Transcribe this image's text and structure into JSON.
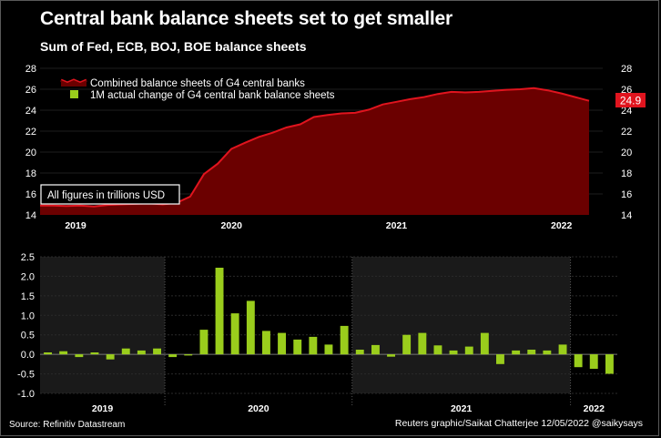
{
  "title": "Central bank balance sheets set to get smaller",
  "subtitle": "Sum of Fed, ECB, BOJ, BOE balance sheets",
  "source": "Source: Refinitiv Datastream",
  "credit": "Reuters graphic/Saikat Chatterjee 12/05/2022 @saikysays",
  "colors": {
    "area_fill": "#6b0000",
    "area_line": "#e0141e",
    "bar": "#9acd1c",
    "last_value_badge": "#e0141e",
    "shade": "#1a1a1a"
  },
  "chart_data": [
    {
      "type": "area",
      "legend": [
        "Combined balance sheets of G4 central banks",
        "1M actual change of G4 central bank balance sheets"
      ],
      "note": "All figures in trillions USD",
      "last_value_label": "24.9",
      "ylim": [
        14,
        28
      ],
      "yticks": [
        14,
        16,
        18,
        20,
        22,
        24,
        26,
        28
      ],
      "xlim": [
        2018.84,
        2022.25
      ],
      "year_labels": [
        {
          "label": "2019",
          "x": 2019.0
        },
        {
          "label": "2020",
          "x": 2020.0
        },
        {
          "label": "2021",
          "x": 2021.0
        },
        {
          "label": "2022",
          "x": 2022.0
        }
      ],
      "x": [
        2018.84,
        2018.917,
        2019.0,
        2019.083,
        2019.167,
        2019.25,
        2019.333,
        2019.417,
        2019.5,
        2019.583,
        2019.667,
        2019.75,
        2019.833,
        2019.917,
        2020.0,
        2020.083,
        2020.167,
        2020.25,
        2020.333,
        2020.417,
        2020.5,
        2020.583,
        2020.667,
        2020.75,
        2020.833,
        2020.917,
        2021.0,
        2021.083,
        2021.167,
        2021.25,
        2021.333,
        2021.417,
        2021.5,
        2021.583,
        2021.667,
        2021.75,
        2021.833,
        2021.917,
        2022.0,
        2022.083,
        2022.167
      ],
      "values": [
        14.9,
        14.9,
        14.85,
        14.9,
        14.8,
        14.95,
        15.0,
        15.05,
        15.1,
        15.0,
        15.15,
        15.75,
        17.9,
        18.9,
        20.3,
        20.9,
        21.45,
        21.85,
        22.35,
        22.65,
        23.35,
        23.55,
        23.7,
        23.75,
        24.05,
        24.55,
        24.8,
        25.05,
        25.25,
        25.55,
        25.75,
        25.7,
        25.75,
        25.85,
        25.95,
        26.0,
        26.1,
        25.9,
        25.6,
        25.25,
        24.9
      ]
    },
    {
      "type": "bar",
      "ylim": [
        -1.0,
        2.5
      ],
      "yticks": [
        "2.5",
        "2.0",
        "1.5",
        "1.0",
        "0.5",
        "0.0",
        "-0.5",
        "-1.0"
      ],
      "year_labels": [
        "2019",
        "2020",
        "2021",
        "2022"
      ],
      "groups": [
        {
          "year": "2019",
          "values": [
            0.05,
            0.08,
            -0.07,
            0.05,
            -0.13,
            0.15,
            0.1,
            0.15
          ]
        },
        {
          "year": "2020",
          "values": [
            -0.07,
            -0.03,
            0.63,
            2.22,
            1.05,
            1.37,
            0.6,
            0.55,
            0.38,
            0.45,
            0.25,
            0.73
          ]
        },
        {
          "year": "2021",
          "values": [
            0.12,
            0.24,
            -0.06,
            0.5,
            0.55,
            0.23,
            0.1,
            0.2,
            0.55,
            -0.25,
            0.1,
            0.12,
            0.1,
            0.25
          ]
        },
        {
          "year": "2022",
          "values": [
            -0.33,
            -0.37,
            -0.5
          ]
        }
      ]
    }
  ]
}
